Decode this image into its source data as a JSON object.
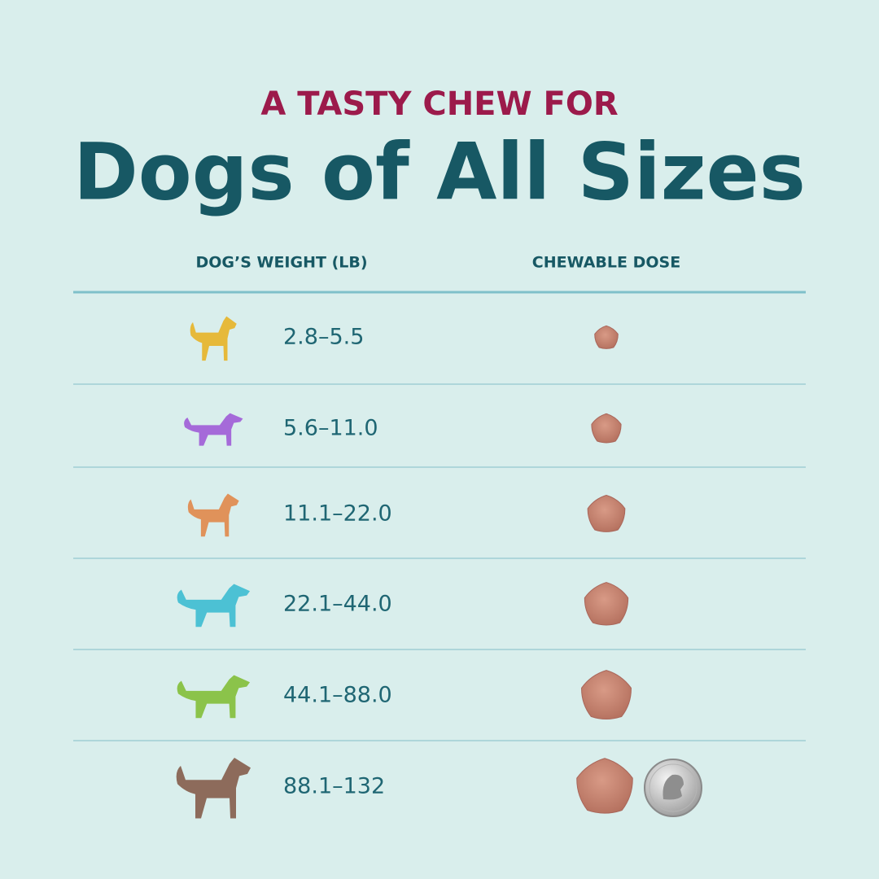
{
  "header": {
    "kicker": "A TASTY CHEW FOR",
    "title": "Dogs of All Sizes"
  },
  "table": {
    "columns": [
      "DOG’S WEIGHT (LB)",
      "CHEWABLE DOSE"
    ],
    "rows": [
      "2.8–5.5",
      "5.6–11.0",
      "11.1–22.0",
      "22.1–44.0",
      "44.1–88.0",
      "88.1–132"
    ]
  }
}
